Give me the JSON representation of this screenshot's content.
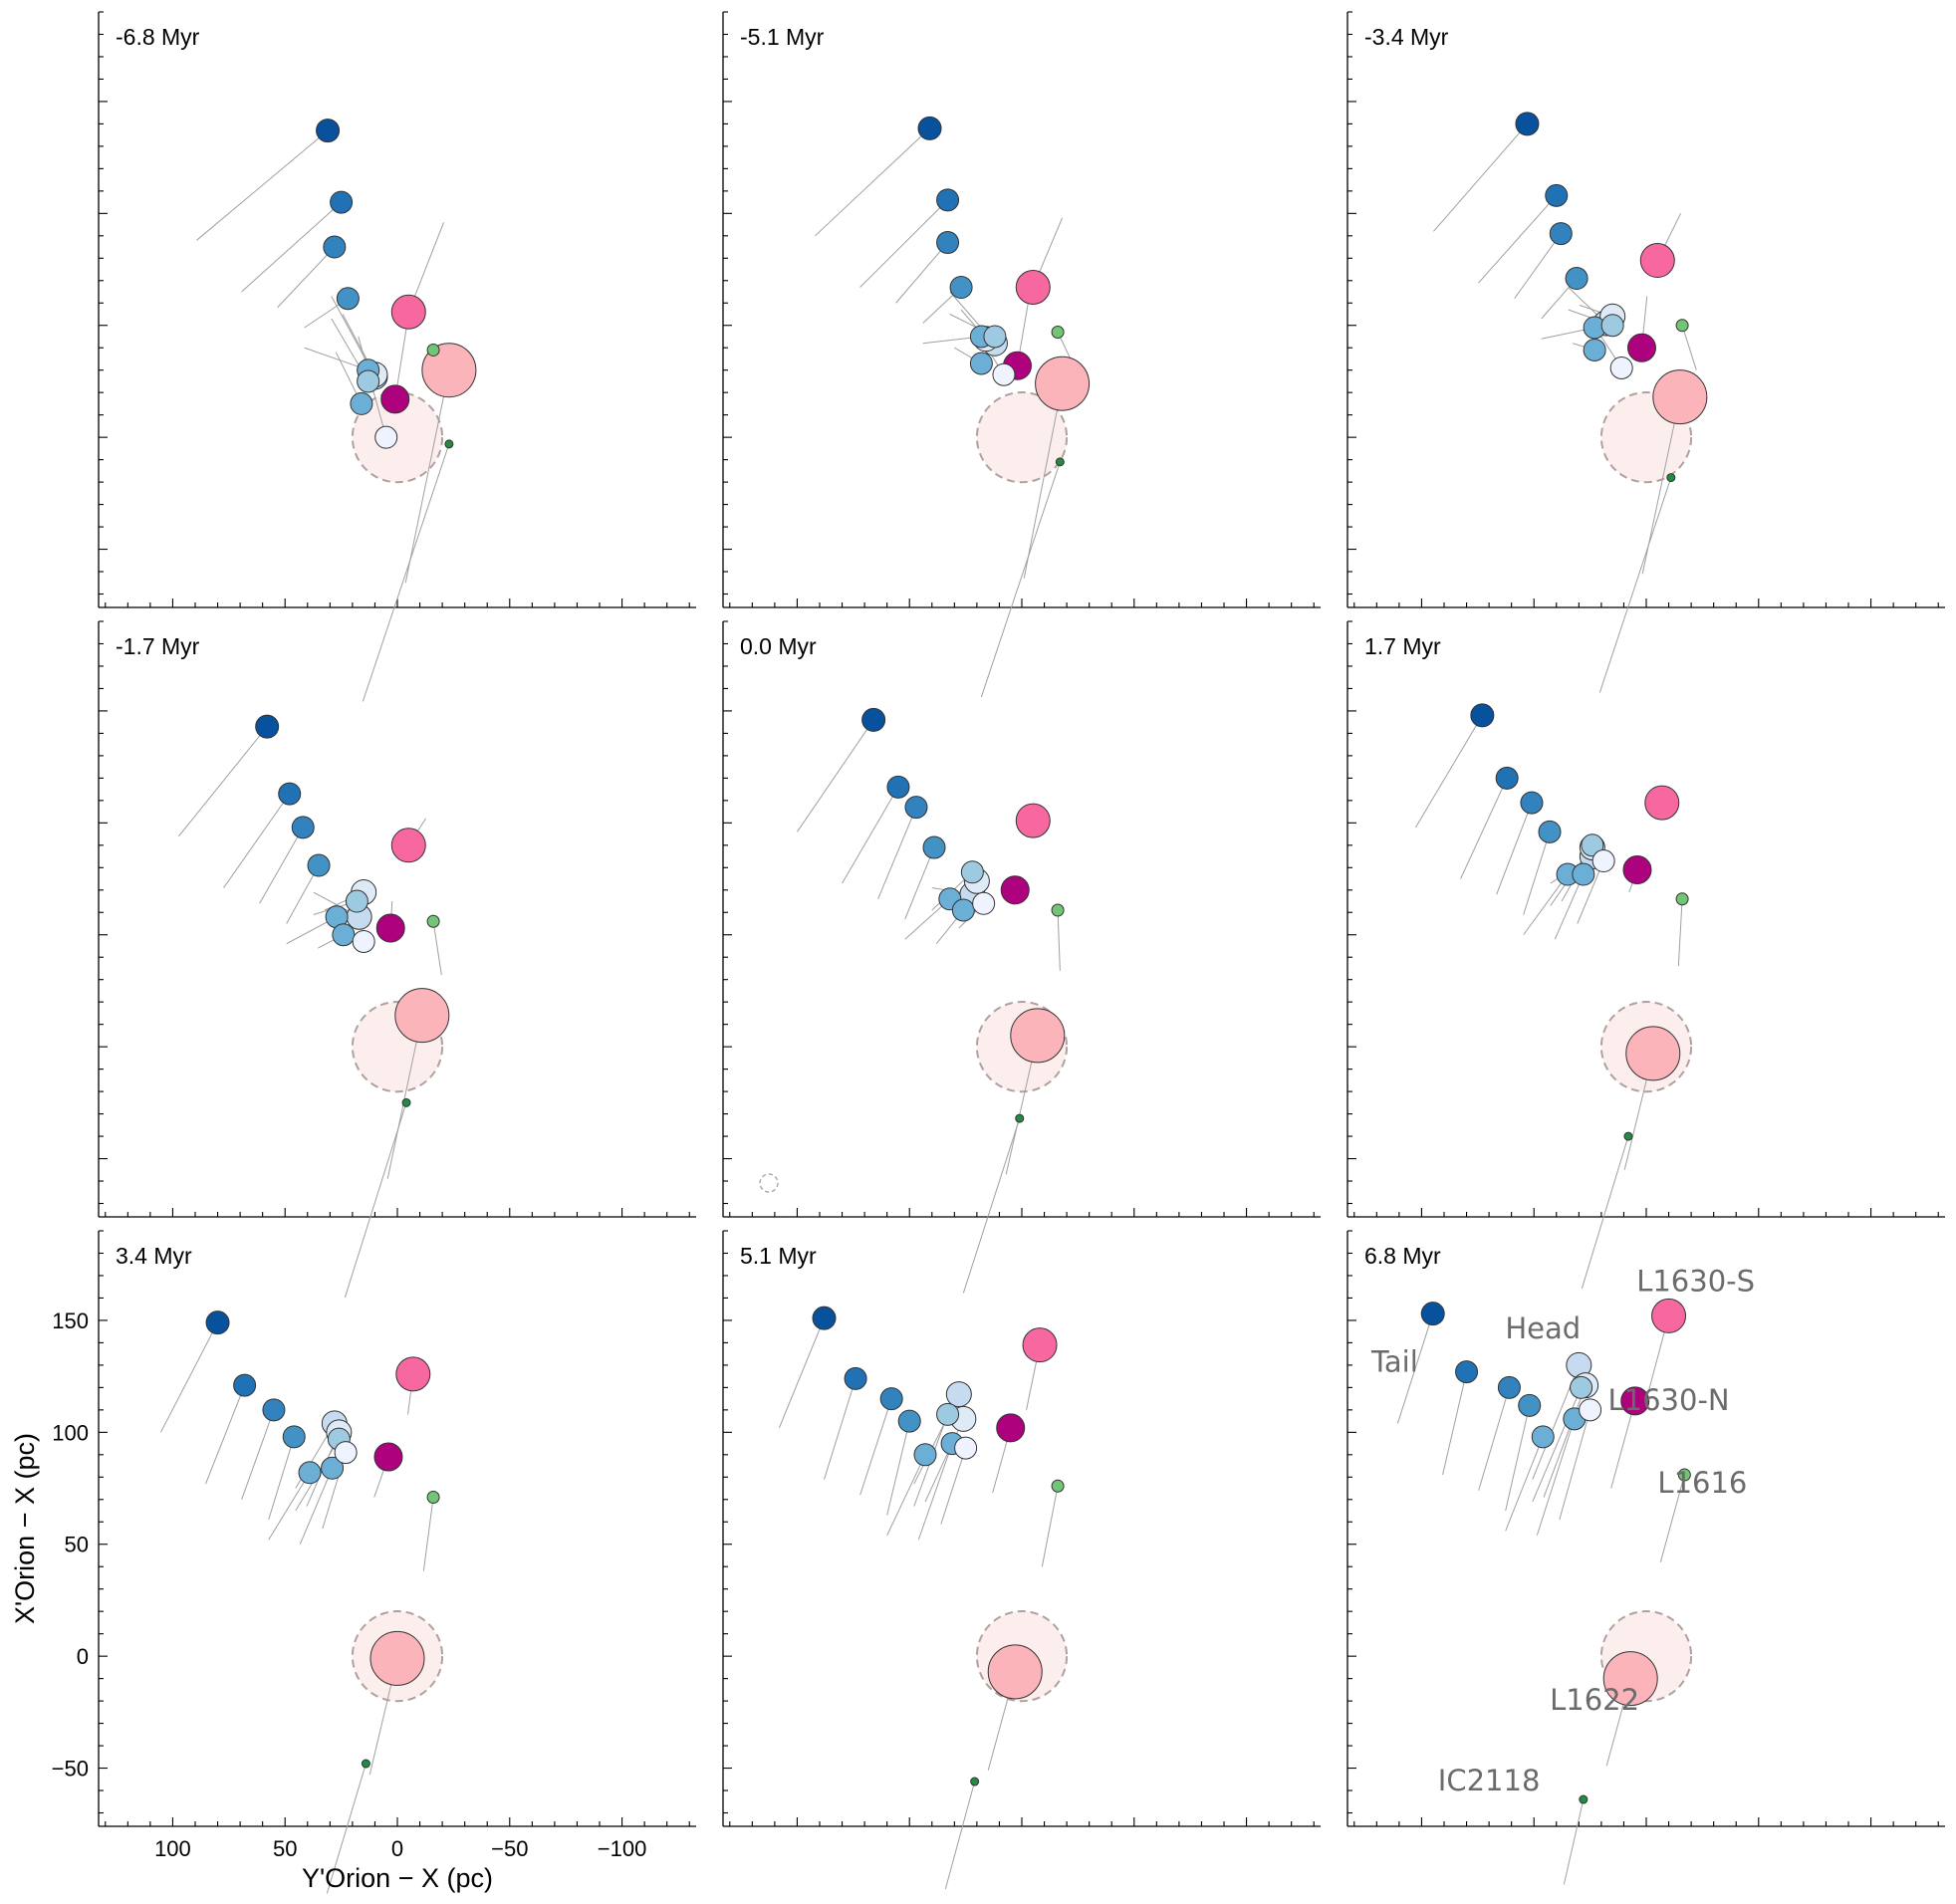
{
  "chart_data": {
    "type": "scatter",
    "xlabel": "Y'Orion − X (pc)",
    "ylabel": "X'Orion − X (pc)",
    "xlim": [
      133,
      -133
    ],
    "ylim": [
      -76,
      190
    ],
    "x_ticks": [
      100,
      50,
      0,
      -50,
      -100
    ],
    "x_tick_labels": [
      "100",
      "50",
      "0",
      "−50",
      "−100"
    ],
    "y_ticks": [
      150,
      100,
      50,
      0,
      -50
    ],
    "y_tick_labels": [
      "150",
      "100",
      "50",
      "0",
      "−50"
    ],
    "reference_circle": {
      "x": 0,
      "y": 0,
      "radius_pc": 20,
      "fill": "#fdeeee",
      "stroke": "#b0a0a0"
    },
    "groups": [
      {
        "name": "tail-1",
        "color": "#08519c",
        "size": 11.5,
        "final": [
          100,
          143
        ]
      },
      {
        "name": "tail-2",
        "color": "#2171b5",
        "size": 11,
        "final": [
          80,
          120
        ]
      },
      {
        "name": "tail-3",
        "color": "#3182bd",
        "size": 11,
        "final": [
          64,
          113
        ]
      },
      {
        "name": "tail-4",
        "color": "#4292c6",
        "size": 11,
        "final": [
          52,
          104
        ]
      },
      {
        "name": "tail-5",
        "color": "#6baed6",
        "size": 11,
        "final": [
          52,
          95
        ]
      },
      {
        "name": "tail-6",
        "color": "#6baed6",
        "size": 11,
        "final": [
          38,
          93
        ]
      },
      {
        "name": "mid-1",
        "color": "#9ecae1",
        "size": 11,
        "final": [
          40,
          108
        ]
      },
      {
        "name": "head-1",
        "color": "#c6dbef",
        "size": 12.5,
        "final": [
          40,
          118
        ]
      },
      {
        "name": "head-2",
        "color": "#deebf7",
        "size": 12.5,
        "final": [
          35,
          110
        ]
      },
      {
        "name": "head-3",
        "color": "#eff3ff",
        "size": 11,
        "final": [
          28,
          100
        ]
      },
      {
        "name": "L1630-N",
        "color": "#ae017e",
        "size": 14,
        "final": [
          5,
          114
        ]
      },
      {
        "name": "L1630-S",
        "color": "#f768a1",
        "size": 17,
        "final": [
          -10,
          151
        ]
      },
      {
        "name": "L1616",
        "color": "#74c476",
        "size": 6,
        "final": [
          -17,
          81
        ]
      },
      {
        "name": "L1622",
        "color": "#fbb4b9",
        "size": 27,
        "final": [
          7,
          -10
        ]
      },
      {
        "name": "IC2118",
        "color": "#238b45",
        "size": 4,
        "final": [
          26,
          -63
        ]
      }
    ],
    "panels": [
      {
        "time": "-6.8 Myr",
        "points": [
          [
            31,
            137
          ],
          [
            25,
            105
          ],
          [
            28,
            85
          ],
          [
            22,
            62
          ],
          [
            13,
            30
          ],
          [
            16,
            15
          ],
          [
            13,
            25
          ],
          [
            10,
            27
          ],
          [
            10,
            28
          ],
          [
            5,
            0
          ],
          [
            1,
            17
          ],
          [
            -5,
            56
          ],
          [
            -16,
            39
          ],
          [
            -23,
            30
          ],
          [
            -23,
            -3
          ]
        ]
      },
      {
        "time": "-5.1 Myr",
        "points": [
          [
            41,
            138
          ],
          [
            33,
            106
          ],
          [
            33,
            87
          ],
          [
            27,
            67
          ],
          [
            18,
            45
          ],
          [
            18,
            33
          ],
          [
            12,
            45
          ],
          [
            12,
            42
          ],
          [
            16,
            44
          ],
          [
            8,
            28
          ],
          [
            2,
            32
          ],
          [
            -5,
            67
          ],
          [
            -16,
            47
          ],
          [
            -18,
            24
          ],
          [
            -17,
            -11
          ]
        ]
      },
      {
        "time": "-3.4 Myr",
        "points": [
          [
            53,
            140
          ],
          [
            40,
            108
          ],
          [
            38,
            91
          ],
          [
            31,
            71
          ],
          [
            23,
            49
          ],
          [
            23,
            39
          ],
          [
            15,
            50
          ],
          [
            18,
            51
          ],
          [
            15,
            54
          ],
          [
            11,
            31
          ],
          [
            2,
            40
          ],
          [
            -5,
            79
          ],
          [
            -16,
            50
          ],
          [
            -15,
            18
          ],
          [
            -11,
            -18
          ]
        ]
      },
      {
        "time": "-1.7 Myr",
        "points": [
          [
            58,
            143
          ],
          [
            48,
            113
          ],
          [
            42,
            98
          ],
          [
            35,
            81
          ],
          [
            27,
            58
          ],
          [
            24,
            50
          ],
          [
            18,
            65
          ],
          [
            17,
            58
          ],
          [
            15,
            69
          ],
          [
            15,
            47
          ],
          [
            3,
            53
          ],
          [
            -5,
            90
          ],
          [
            -16,
            56
          ],
          [
            -11,
            14
          ],
          [
            -4,
            -25
          ]
        ]
      },
      {
        "time": "0.0 Myr",
        "points": [
          [
            66,
            146
          ],
          [
            55,
            116
          ],
          [
            47,
            107
          ],
          [
            39,
            89
          ],
          [
            32,
            66
          ],
          [
            26,
            61
          ],
          [
            22,
            78
          ],
          [
            22,
            68
          ],
          [
            20,
            74
          ],
          [
            17,
            64
          ],
          [
            3,
            70
          ],
          [
            -5,
            101
          ],
          [
            -16,
            61
          ],
          [
            -7,
            5
          ],
          [
            1,
            -32
          ]
        ]
      },
      {
        "time": "1.7 Myr",
        "points": [
          [
            73,
            148
          ],
          [
            62,
            120
          ],
          [
            51,
            109
          ],
          [
            43,
            96
          ],
          [
            35,
            77
          ],
          [
            28,
            77
          ],
          [
            24,
            90
          ],
          [
            24,
            85
          ],
          [
            24,
            89
          ],
          [
            19,
            83
          ],
          [
            4,
            79
          ],
          [
            -7,
            109
          ],
          [
            -16,
            66
          ],
          [
            -3,
            -3
          ],
          [
            8,
            -40
          ]
        ]
      },
      {
        "time": "3.4 Myr",
        "points": [
          [
            80,
            149
          ],
          [
            68,
            121
          ],
          [
            55,
            110
          ],
          [
            46,
            98
          ],
          [
            39,
            82
          ],
          [
            29,
            84
          ],
          [
            26,
            97
          ],
          [
            28,
            104
          ],
          [
            26,
            100
          ],
          [
            23,
            91
          ],
          [
            4,
            89
          ],
          [
            -7,
            126
          ],
          [
            -16,
            71
          ],
          [
            0,
            -1
          ],
          [
            14,
            -48
          ]
        ]
      },
      {
        "time": "5.1 Myr",
        "points": [
          [
            88,
            151
          ],
          [
            74,
            124
          ],
          [
            58,
            115
          ],
          [
            50,
            105
          ],
          [
            43,
            90
          ],
          [
            31,
            95
          ],
          [
            33,
            108
          ],
          [
            28,
            117
          ],
          [
            26,
            106
          ],
          [
            25,
            93
          ],
          [
            5,
            102
          ],
          [
            -8,
            139
          ],
          [
            -16,
            76
          ],
          [
            3,
            -7
          ],
          [
            21,
            -56
          ]
        ]
      },
      {
        "time": "6.8 Myr",
        "points": [
          [
            95,
            153
          ],
          [
            80,
            127
          ],
          [
            61,
            120
          ],
          [
            52,
            112
          ],
          [
            46,
            98
          ],
          [
            32,
            106
          ],
          [
            29,
            120
          ],
          [
            30,
            130
          ],
          [
            27,
            121
          ],
          [
            25,
            110
          ],
          [
            5,
            114
          ],
          [
            -10,
            152
          ],
          [
            -17,
            81
          ],
          [
            7,
            -10
          ],
          [
            28,
            -64
          ]
        ]
      }
    ],
    "annotations": [
      {
        "text": "L1630-S",
        "x": -22,
        "y": 163
      },
      {
        "text": "Head",
        "x": 46,
        "y": 142
      },
      {
        "text": "Tail",
        "x": 112,
        "y": 127
      },
      {
        "text": "L1630-N",
        "x": -10,
        "y": 110
      },
      {
        "text": "L1616",
        "x": -25,
        "y": 73
      },
      {
        "text": "L1622",
        "x": 23,
        "y": -24
      },
      {
        "text": "IC2118",
        "x": 70,
        "y": -60
      }
    ]
  }
}
